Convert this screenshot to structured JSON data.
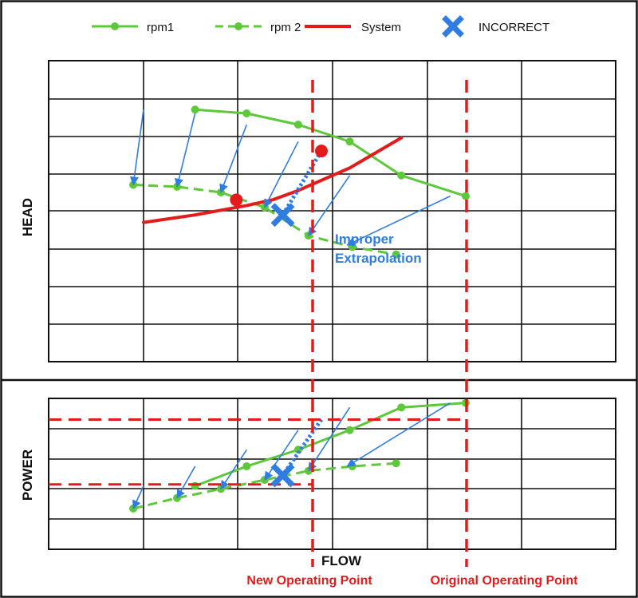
{
  "legend": [
    {
      "key": "rpm1",
      "label": "rpm1",
      "style": "solid-marker",
      "color": "#5cc83a"
    },
    {
      "key": "rpm2",
      "label": "rpm 2",
      "style": "dashed-marker",
      "color": "#5cc83a"
    },
    {
      "key": "system",
      "label": "System",
      "style": "solid-thick",
      "color": "#e31b1b"
    },
    {
      "key": "incorrect",
      "label": "INCORRECT",
      "style": "x-marker",
      "color": "#2f7de1"
    }
  ],
  "colors": {
    "green": "#5cc83a",
    "red": "#e31b1b",
    "blue": "#2f7de1",
    "frame": "#111111"
  },
  "chart_data": [
    {
      "type": "line",
      "panel": "head",
      "title": "",
      "xlabel": "",
      "ylabel": "HEAD",
      "xlim": [
        0,
        11
      ],
      "ylim": [
        0,
        8
      ],
      "grid": true,
      "legend_position": "top",
      "series": [
        {
          "key": "rpm1",
          "name": "rpm1",
          "style": "solid",
          "x": [
            1,
            2,
            3,
            4,
            5,
            6.25
          ],
          "y": [
            6.7,
            6.6,
            6.3,
            5.85,
            4.95,
            4.4
          ]
        },
        {
          "key": "rpm2",
          "name": "rpm 2",
          "style": "dashed",
          "x": [
            -0.2,
            0.65,
            1.5,
            2.35,
            3.2,
            4.05,
            4.9
          ],
          "y": [
            4.7,
            4.65,
            4.5,
            4.1,
            3.35,
            3.05,
            2.85
          ]
        },
        {
          "key": "system",
          "name": "System",
          "style": "solid-thick",
          "x": [
            0,
            1,
            2,
            2.5,
            3,
            4,
            5
          ],
          "y": [
            3.7,
            3.9,
            4.15,
            4.3,
            4.55,
            5.15,
            5.95
          ]
        },
        {
          "key": "affinity_arrows",
          "x_from": [
            0,
            1,
            2,
            3,
            4,
            5.95
          ],
          "y_from": [
            6.7,
            6.6,
            6.3,
            5.85,
            4.95,
            4.4
          ],
          "x_to": [
            -0.2,
            0.65,
            1.5,
            2.35,
            3.2,
            3.95
          ],
          "y_to": [
            4.7,
            4.65,
            4.5,
            4.1,
            3.35,
            3.1
          ]
        }
      ],
      "operating_points": [
        {
          "key": "new",
          "x": 1.8,
          "y": 4.3
        },
        {
          "key": "original",
          "x": 3.45,
          "y": 5.6
        }
      ],
      "incorrect_point": {
        "x": 2.7,
        "y": 3.9
      },
      "improper_line": {
        "x": [
          3.45,
          2.7
        ],
        "y": [
          5.6,
          3.9
        ]
      },
      "annotation": "Improper\nExtrapolation"
    },
    {
      "type": "line",
      "panel": "power",
      "title": "",
      "xlabel": "FLOW",
      "ylabel": "POWER",
      "xlim": [
        0,
        11
      ],
      "ylim": [
        0,
        5
      ],
      "grid": true,
      "series": [
        {
          "key": "rpm1",
          "name": "rpm1",
          "style": "solid",
          "x": [
            1,
            2,
            3,
            4,
            5,
            6.25
          ],
          "y": [
            2.1,
            2.75,
            3.3,
            3.95,
            4.7,
            4.85
          ]
        },
        {
          "key": "rpm2",
          "name": "rpm 2",
          "style": "dashed",
          "x": [
            -0.2,
            0.65,
            1.5,
            2.35,
            3.2,
            4.05,
            4.9
          ],
          "y": [
            1.35,
            1.7,
            2.0,
            2.3,
            2.6,
            2.75,
            2.85
          ]
        },
        {
          "key": "affinity_arrows",
          "x_from": [
            0,
            1,
            2,
            3,
            4,
            5.95
          ],
          "y_from": [
            2.1,
            2.75,
            3.3,
            3.95,
            4.7,
            4.85
          ],
          "x_to": [
            -0.2,
            0.65,
            1.5,
            2.35,
            3.2,
            3.95
          ],
          "y_to": [
            1.35,
            1.7,
            2.0,
            2.3,
            2.6,
            2.75
          ]
        }
      ],
      "new_power_level": 2.15,
      "original_power_level": 4.3,
      "incorrect_point": {
        "x": 2.7,
        "y": 2.45
      },
      "improper_line": {
        "x": [
          3.45,
          2.7
        ],
        "y": [
          4.3,
          2.45
        ]
      }
    }
  ],
  "new_operating_point_label": "New Operating Point",
  "original_operating_point_label": "Original Operating Point"
}
